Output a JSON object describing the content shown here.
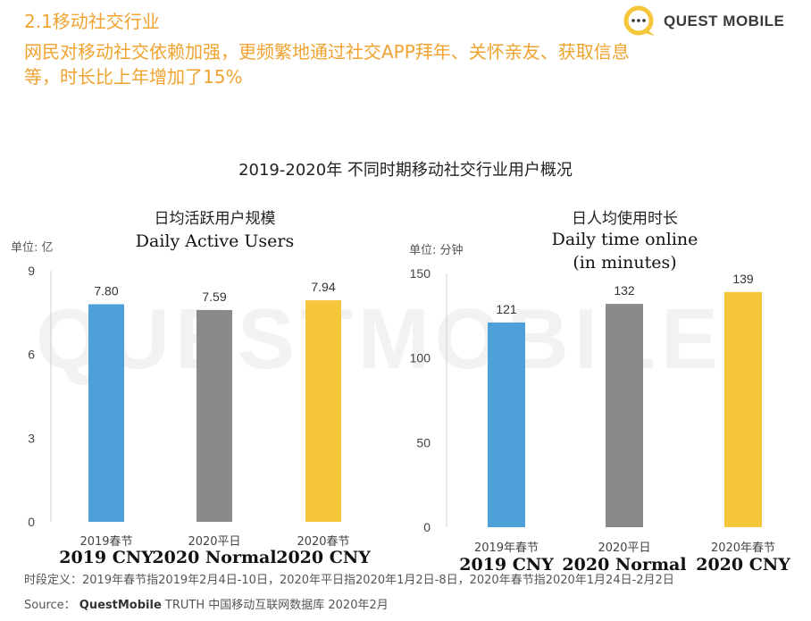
{
  "header": {
    "section": "2.1移动社交行业",
    "headline": "网民对移动社交依赖加强，更频繁地通过社交APP拜年、关怀亲友、获取信息等，时长比上年增加了15%"
  },
  "logo": {
    "text": "QUEST MOBILE",
    "watermark": "QUESTMOBILE"
  },
  "main_title": "2019-2020年 不同时期移动社交行业用户概况",
  "chart_data": [
    {
      "type": "bar",
      "title": "日均活跃用户规模",
      "subtitle": "Daily Active Users",
      "unit": "单位: 亿",
      "categories": [
        "2019春节",
        "2020平日",
        "2020春节"
      ],
      "category_labels_en": [
        "2019 CNY",
        "2020 Normal",
        "2020 CNY"
      ],
      "values": [
        7.8,
        7.59,
        7.94
      ],
      "value_labels": [
        "7.80",
        "7.59",
        "7.94"
      ],
      "colors": [
        "#4ea1d8",
        "#8a8a8a",
        "#f5c53a"
      ],
      "yticks": [
        0,
        3,
        6,
        9
      ],
      "ylim": [
        0,
        9
      ]
    },
    {
      "type": "bar",
      "title": "日人均使用时长",
      "subtitle": "Daily time online",
      "subtitle2": "(in minutes)",
      "unit": "单位: 分钟",
      "categories": [
        "2019年春节",
        "2020平日",
        "2020年春节"
      ],
      "category_labels_en": [
        "2019 CNY",
        "2020 Normal",
        "2020 CNY"
      ],
      "values": [
        121,
        132,
        139
      ],
      "value_labels": [
        "121",
        "132",
        "139"
      ],
      "colors": [
        "#4ea1d8",
        "#8a8a8a",
        "#f5c53a"
      ],
      "yticks": [
        0,
        50,
        100,
        150
      ],
      "ylim": [
        0,
        150
      ]
    }
  ],
  "footnote": "时段定义：2019年春节指2019年2月4日-10日，2020年平日指2020年1月2日-8日，2020年春节指2020年1月24日-2月2日",
  "source": {
    "label": "Source：",
    "brand": "QuestMobile",
    "text": " TRUTH 中国移动互联网数据库 2020年2月"
  }
}
